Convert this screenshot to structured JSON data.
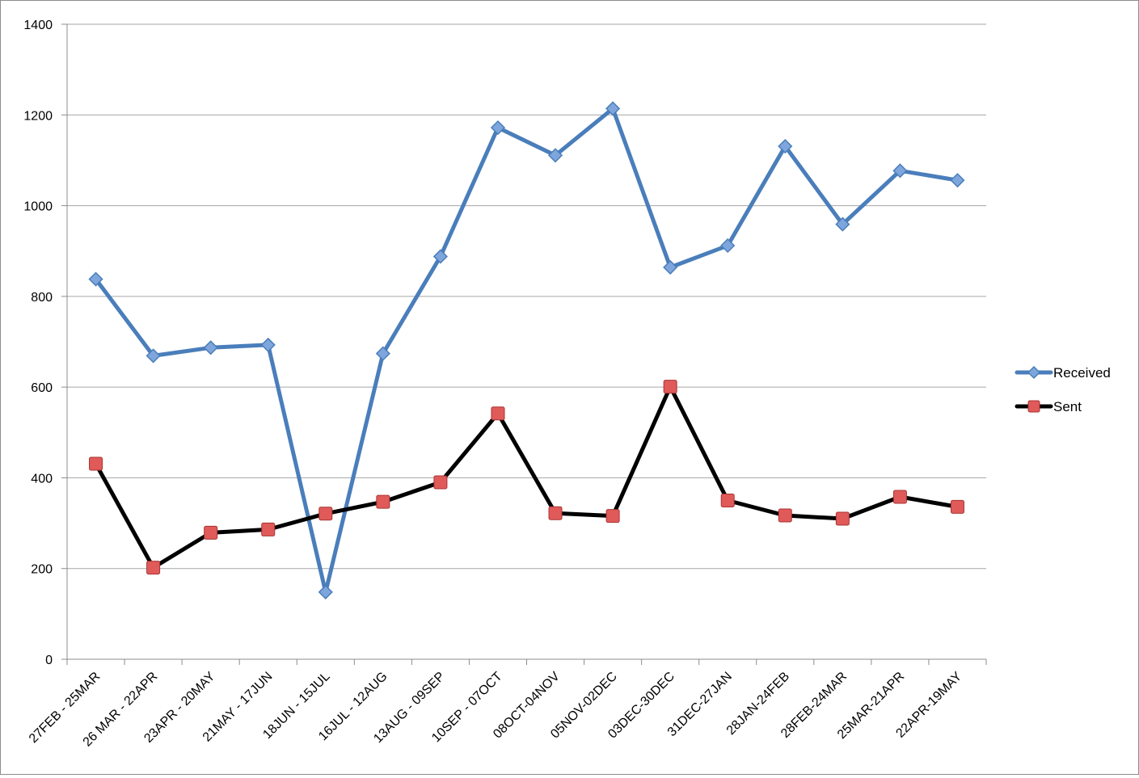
{
  "chart_data": {
    "type": "line",
    "categories": [
      "27FEB - 25MAR",
      "26 MAR - 22APR",
      "23APR - 20MAY",
      "21MAY - 17JUN",
      "18JUN - 15JUL",
      "16JUL - 12AUG",
      "13AUG - 09SEP",
      "10SEP - 07OCT",
      "08OCT-04NOV",
      "05NOV-02DEC",
      "03DEC-30DEC",
      "31DEC-27JAN",
      "28JAN-24FEB",
      "28FEB-24MAR",
      "25MAR-21APR",
      "22APR-19MAY"
    ],
    "series": [
      {
        "name": "Received",
        "color": "#4a7ebb",
        "marker": "diamond",
        "marker_fill": "#7ea6dc",
        "values": [
          838,
          669,
          687,
          693,
          148,
          674,
          888,
          1172,
          1111,
          1214,
          864,
          912,
          1131,
          959,
          1077,
          1056
        ]
      },
      {
        "name": "Sent",
        "color": "#000000",
        "marker": "square",
        "marker_fill": "#e05a5a",
        "values": [
          431,
          202,
          279,
          286,
          321,
          347,
          390,
          542,
          322,
          316,
          601,
          350,
          317,
          310,
          358,
          336
        ]
      }
    ],
    "yticks": [
      "0",
      "200",
      "400",
      "600",
      "800",
      "1000",
      "1200",
      "1400"
    ],
    "ylim": [
      0,
      1400
    ],
    "grid": true,
    "legend": "right",
    "title": "",
    "xlabel": "",
    "ylabel": ""
  }
}
